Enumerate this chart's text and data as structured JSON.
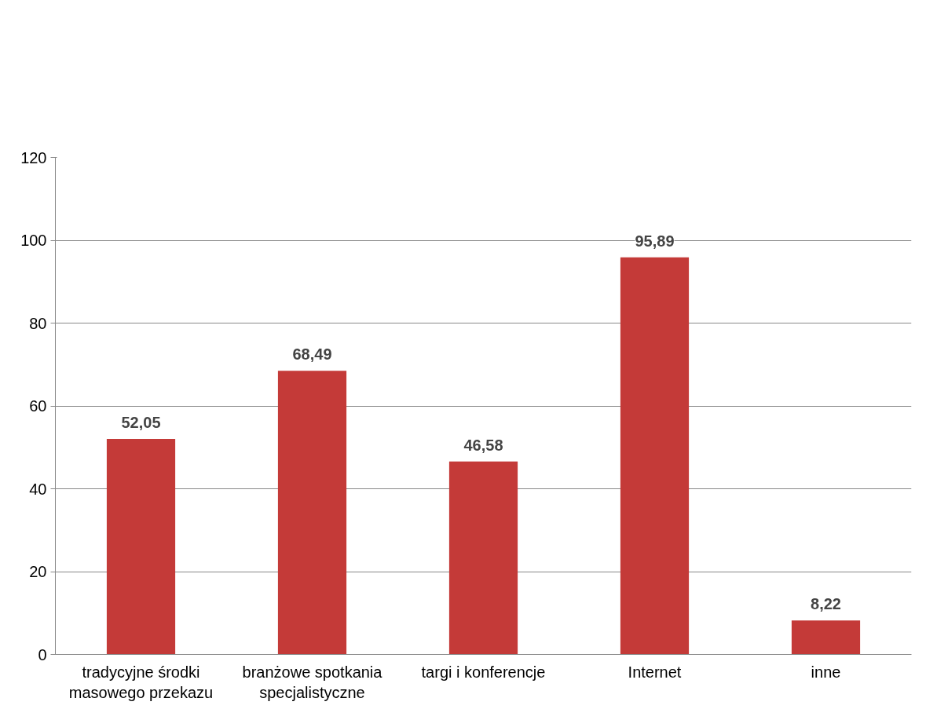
{
  "chart_data": {
    "type": "bar",
    "categories": [
      "tradycyjne środki masowego przekazu",
      "branżowe spotkania specjalistyczne",
      "targi i konferencje",
      "Internet",
      "inne"
    ],
    "values": [
      52.05,
      68.49,
      46.58,
      95.89,
      8.22
    ],
    "value_labels": [
      "52,05",
      "68,49",
      "46,58",
      "95,89",
      "8,22"
    ],
    "color": "#c43a38",
    "ylim": [
      0,
      120
    ],
    "yticks": [
      0,
      20,
      40,
      60,
      80,
      100,
      120
    ],
    "grid": "y"
  }
}
